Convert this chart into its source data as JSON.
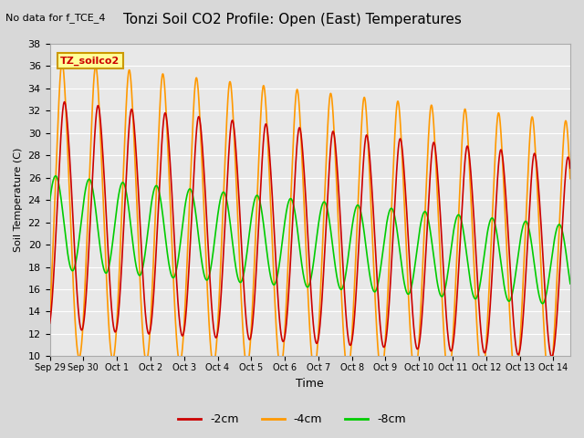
{
  "title": "Tonzi Soil CO2 Profile: Open (East) Temperatures",
  "subtitle": "No data for f_TCE_4",
  "legend_label": "TZ_soilco2",
  "ylabel": "Soil Temperature (C)",
  "xlabel": "Time",
  "ylim": [
    10,
    38
  ],
  "yticks": [
    10,
    12,
    14,
    16,
    18,
    20,
    22,
    24,
    26,
    28,
    30,
    32,
    34,
    36,
    38
  ],
  "xtick_labels": [
    "Sep 29",
    "Sep 30",
    "Oct 1",
    "Oct 2",
    "Oct 3",
    "Oct 4",
    "Oct 5",
    "Oct 6",
    "Oct 7",
    "Oct 8",
    "Oct 9",
    "Oct 10",
    "Oct 11",
    "Oct 12",
    "Oct 13",
    "Oct 14"
  ],
  "color_2cm": "#cc0000",
  "color_4cm": "#ff9900",
  "color_8cm": "#00cc00",
  "legend_box_color": "#ffff99",
  "legend_box_edge": "#cc9900",
  "num_points": 1488
}
